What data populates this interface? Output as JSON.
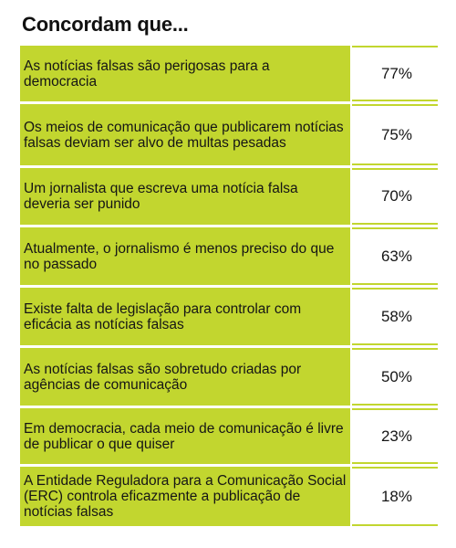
{
  "title": "Concordam que...",
  "chart_data": {
    "type": "table",
    "title": "Concordam que...",
    "rows": [
      {
        "label": "As notícias falsas são perigosas para a democracia",
        "value": "77%"
      },
      {
        "label": "Os meios de comunicação que publicarem notícias falsas deviam ser alvo de multas pesadas",
        "value": "75%"
      },
      {
        "label": "Um jornalista que escreva uma notícia falsa deveria ser punido",
        "value": "70%"
      },
      {
        "label": "Atualmente, o jornalismo é menos preciso do que no passado",
        "value": "63%"
      },
      {
        "label": "Existe falta de legislação para controlar com eficácia as notícias falsas",
        "value": "58%"
      },
      {
        "label": "As notícias falsas são sobretudo criadas por agências de comunicação",
        "value": "50%"
      },
      {
        "label": "Em democracia, cada meio de comunicação é livre de publicar o que quiser",
        "value": "23%"
      },
      {
        "label": "A Entidade Reguladora para a Comunicação Social (ERC) controla eficazmente a publicação de notícias falsas",
        "value": "18%"
      }
    ],
    "colors": {
      "accent": "#c2d62f",
      "text": "#151515"
    }
  }
}
